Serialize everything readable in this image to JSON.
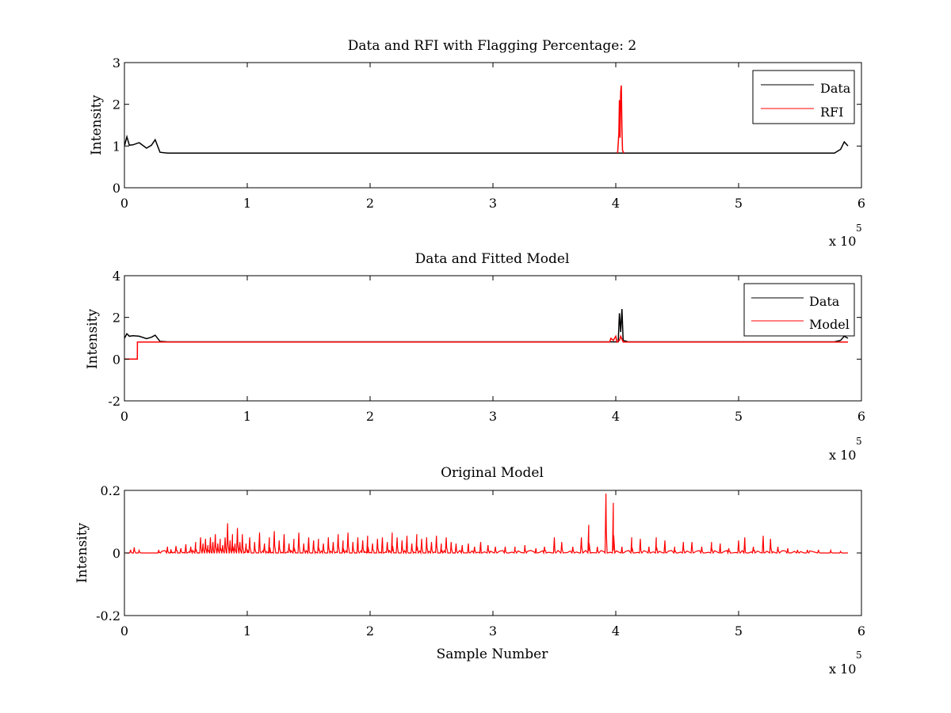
{
  "figure": {
    "background": "#ffffff"
  },
  "colors": {
    "data": "#000000",
    "red": "#ff0000",
    "axis": "#000000"
  },
  "chart_data": [
    {
      "type": "line",
      "title": "Data and RFI with Flagging Percentage: 2",
      "xlabel": "",
      "ylabel": "Intensity",
      "xlim": [
        0,
        600000
      ],
      "ylim": [
        0,
        3
      ],
      "xticks": [
        0,
        1,
        2,
        3,
        4,
        5,
        6
      ],
      "yticks": [
        0,
        1,
        2,
        3
      ],
      "x_exponent": {
        "prefix": "x 10",
        "power": "5"
      },
      "legend": {
        "placement": "top-right",
        "entries": [
          "Data",
          "RFI"
        ]
      },
      "series": [
        {
          "name": "Data",
          "color": "#000000",
          "x": [
            0,
            2000,
            4000,
            7000,
            12000,
            18000,
            22000,
            25000,
            29000,
            35000,
            100000,
            200000,
            300000,
            400000,
            402000,
            410000,
            450000,
            500000,
            550000,
            578000,
            583000,
            586000,
            589000
          ],
          "y": [
            1.0,
            1.22,
            1.02,
            1.03,
            1.08,
            0.95,
            1.02,
            1.15,
            0.85,
            0.83,
            0.83,
            0.83,
            0.83,
            0.83,
            0.83,
            0.83,
            0.83,
            0.83,
            0.83,
            0.83,
            0.92,
            1.1,
            1.0
          ]
        },
        {
          "name": "RFI",
          "color": "#ff0000",
          "x": [
            401500,
            402500,
            403000,
            403500,
            404000,
            404500,
            405000,
            405500,
            406500
          ],
          "y": [
            0.83,
            1.3,
            2.1,
            1.2,
            2.3,
            2.45,
            1.4,
            0.9,
            0.83
          ]
        }
      ]
    },
    {
      "type": "line",
      "title": "Data and Fitted Model",
      "xlabel": "",
      "ylabel": "Intensity",
      "xlim": [
        0,
        600000
      ],
      "ylim": [
        -2,
        4
      ],
      "xticks": [
        0,
        1,
        2,
        3,
        4,
        5,
        6
      ],
      "yticks": [
        -2,
        0,
        2,
        4
      ],
      "x_exponent": {
        "prefix": "x 10",
        "power": "5"
      },
      "legend": {
        "placement": "top-right",
        "entries": [
          "Data",
          "Model"
        ]
      },
      "series": [
        {
          "name": "Data",
          "color": "#000000",
          "x": [
            0,
            2000,
            4000,
            7000,
            12000,
            18000,
            22000,
            25000,
            29000,
            35000,
            100000,
            200000,
            300000,
            400000,
            402000,
            403000,
            404000,
            405000,
            406000,
            410000,
            450000,
            500000,
            550000,
            578000,
            583000,
            586000,
            589000
          ],
          "y": [
            1.0,
            1.22,
            1.1,
            1.12,
            1.1,
            0.98,
            1.05,
            1.15,
            0.85,
            0.83,
            0.83,
            0.83,
            0.83,
            0.83,
            0.83,
            2.2,
            1.3,
            2.4,
            0.9,
            0.83,
            0.83,
            0.83,
            0.83,
            0.83,
            0.9,
            1.1,
            1.0
          ]
        },
        {
          "name": "Model",
          "color": "#ff0000",
          "x": [
            0,
            10500,
            10600,
            100000,
            200000,
            300000,
            395000,
            396000,
            398000,
            400000,
            401000,
            403000,
            404000,
            406000,
            500000,
            589000
          ],
          "y": [
            0,
            0,
            0.82,
            0.82,
            0.82,
            0.82,
            0.82,
            1.0,
            0.9,
            1.1,
            0.82,
            0.9,
            1.1,
            0.82,
            0.82,
            0.82
          ]
        }
      ]
    },
    {
      "type": "line",
      "title": "Original Model",
      "xlabel": "Sample Number",
      "ylabel": "Intensity",
      "xlim": [
        0,
        600000
      ],
      "ylim": [
        -0.2,
        0.2
      ],
      "xticks": [
        0,
        1,
        2,
        3,
        4,
        5,
        6
      ],
      "yticks": [
        -0.2,
        0,
        0.2
      ],
      "ytick_labels": [
        "-0.2",
        "0",
        "0.2"
      ],
      "x_exponent": {
        "prefix": "x 10",
        "power": "5"
      },
      "series": [
        {
          "name": "",
          "color": "#ff0000",
          "baseline": 0,
          "spikes": [
            [
              5000,
              0.01
            ],
            [
              8000,
              0.018
            ],
            [
              12000,
              0.008
            ],
            [
              28000,
              0.01
            ],
            [
              35000,
              0.02
            ],
            [
              38000,
              0.012
            ],
            [
              42000,
              0.022
            ],
            [
              46000,
              0.015
            ],
            [
              50000,
              0.028
            ],
            [
              54000,
              0.02
            ],
            [
              58000,
              0.035
            ],
            [
              62000,
              0.05
            ],
            [
              64000,
              0.03
            ],
            [
              66000,
              0.045
            ],
            [
              68000,
              0.025
            ],
            [
              70000,
              0.05
            ],
            [
              72000,
              0.035
            ],
            [
              74000,
              0.06
            ],
            [
              76000,
              0.03
            ],
            [
              78000,
              0.045
            ],
            [
              80000,
              0.025
            ],
            [
              82000,
              0.05
            ],
            [
              84000,
              0.095
            ],
            [
              86000,
              0.04
            ],
            [
              88000,
              0.06
            ],
            [
              90000,
              0.03
            ],
            [
              92000,
              0.08
            ],
            [
              94000,
              0.035
            ],
            [
              96000,
              0.06
            ],
            [
              99000,
              0.03
            ],
            [
              102000,
              0.05
            ],
            [
              106000,
              0.035
            ],
            [
              110000,
              0.065
            ],
            [
              114000,
              0.03
            ],
            [
              118000,
              0.05
            ],
            [
              122000,
              0.07
            ],
            [
              126000,
              0.04
            ],
            [
              130000,
              0.06
            ],
            [
              134000,
              0.03
            ],
            [
              138000,
              0.045
            ],
            [
              142000,
              0.065
            ],
            [
              146000,
              0.03
            ],
            [
              150000,
              0.05
            ],
            [
              154000,
              0.04
            ],
            [
              158000,
              0.045
            ],
            [
              162000,
              0.03
            ],
            [
              166000,
              0.05
            ],
            [
              170000,
              0.035
            ],
            [
              174000,
              0.06
            ],
            [
              178000,
              0.04
            ],
            [
              182000,
              0.065
            ],
            [
              186000,
              0.035
            ],
            [
              190000,
              0.05
            ],
            [
              194000,
              0.04
            ],
            [
              198000,
              0.055
            ],
            [
              202000,
              0.03
            ],
            [
              206000,
              0.045
            ],
            [
              210000,
              0.05
            ],
            [
              214000,
              0.035
            ],
            [
              218000,
              0.065
            ],
            [
              222000,
              0.05
            ],
            [
              226000,
              0.04
            ],
            [
              230000,
              0.055
            ],
            [
              234000,
              0.03
            ],
            [
              238000,
              0.06
            ],
            [
              242000,
              0.045
            ],
            [
              246000,
              0.05
            ],
            [
              250000,
              0.035
            ],
            [
              254000,
              0.055
            ],
            [
              258000,
              0.03
            ],
            [
              262000,
              0.05
            ],
            [
              266000,
              0.035
            ],
            [
              270000,
              0.03
            ],
            [
              275000,
              0.025
            ],
            [
              280000,
              0.03
            ],
            [
              285000,
              0.02
            ],
            [
              290000,
              0.035
            ],
            [
              296000,
              0.025
            ],
            [
              302000,
              0.02
            ],
            [
              310000,
              0.02
            ],
            [
              318000,
              0.02
            ],
            [
              326000,
              0.025
            ],
            [
              335000,
              0.015
            ],
            [
              342000,
              0.02
            ],
            [
              350000,
              0.05
            ],
            [
              356000,
              0.035
            ],
            [
              365000,
              0.02
            ],
            [
              372000,
              0.05
            ],
            [
              378000,
              0.09
            ],
            [
              385000,
              0.02
            ],
            [
              392000,
              0.19
            ],
            [
              398000,
              0.16
            ],
            [
              405000,
              0.02
            ],
            [
              413000,
              0.05
            ],
            [
              420000,
              0.045
            ],
            [
              427000,
              0.02
            ],
            [
              433000,
              0.05
            ],
            [
              440000,
              0.04
            ],
            [
              448000,
              0.02
            ],
            [
              455000,
              0.035
            ],
            [
              462000,
              0.035
            ],
            [
              470000,
              0.02
            ],
            [
              478000,
              0.035
            ],
            [
              485000,
              0.03
            ],
            [
              492000,
              0.015
            ],
            [
              500000,
              0.04
            ],
            [
              505000,
              0.05
            ],
            [
              512000,
              0.02
            ],
            [
              520000,
              0.055
            ],
            [
              526000,
              0.045
            ],
            [
              532000,
              0.02
            ],
            [
              540000,
              0.015
            ],
            [
              548000,
              0.01
            ],
            [
              556000,
              0.01
            ],
            [
              565000,
              0.01
            ],
            [
              575000,
              0.008
            ],
            [
              583000,
              0.005
            ]
          ]
        }
      ]
    }
  ]
}
